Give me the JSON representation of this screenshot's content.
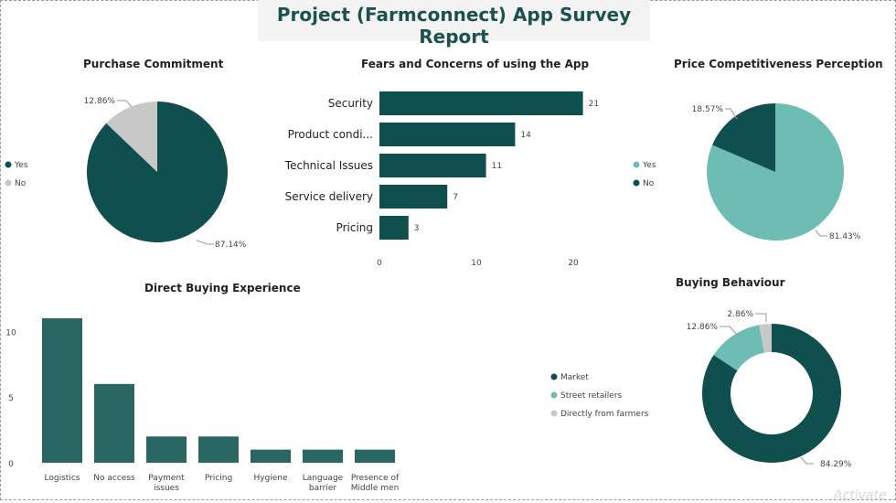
{
  "report": {
    "title": "Project (Farmconnect) App Survey Report"
  },
  "colors": {
    "dark": "#0f4f4d",
    "light": "#6dbdb4",
    "grey": "#c8c8c8",
    "bar": "#2a6763",
    "text": "#222222",
    "label": "#444444"
  },
  "chart_data": [
    {
      "type": "pie",
      "title": "Purchase Commitment",
      "legend_position": "left",
      "slices": [
        {
          "name": "Yes",
          "value": 87.14,
          "label": "87.14%",
          "color": "#0f4f4d"
        },
        {
          "name": "No",
          "value": 12.86,
          "label": "12.86%",
          "color": "#c8c8c8"
        }
      ]
    },
    {
      "type": "bar",
      "orientation": "horizontal",
      "title": "Fears and Concerns of using the App",
      "categories": [
        "Security",
        "Product condi...",
        "Technical Issues",
        "Service delivery",
        "Pricing"
      ],
      "values": [
        21,
        14,
        11,
        7,
        3
      ],
      "data_labels": [
        "21",
        "14",
        "11",
        "7",
        "3"
      ],
      "xlim": [
        0,
        22
      ],
      "xticks": [
        0,
        10,
        20
      ],
      "xtick_labels": [
        "0",
        "10",
        "20"
      ],
      "color": "#0f4f4d"
    },
    {
      "type": "pie",
      "title": "Price Competitiveness Perception",
      "legend_position": "left",
      "slices": [
        {
          "name": "Yes",
          "value": 81.43,
          "label": "81.43%",
          "color": "#6dbdb4"
        },
        {
          "name": "No",
          "value": 18.57,
          "label": "18.57%",
          "color": "#0f4f4d"
        }
      ]
    },
    {
      "type": "bar",
      "title": "Direct Buying Experience",
      "categories": [
        [
          "Logistics"
        ],
        [
          "No access"
        ],
        [
          "Payment",
          "issues"
        ],
        [
          "Pricing"
        ],
        [
          "Hygiene"
        ],
        [
          "Language",
          "barrier"
        ],
        [
          "Presence of",
          "Middle men"
        ]
      ],
      "values": [
        11,
        6,
        2,
        2,
        1,
        1,
        1
      ],
      "ylim": [
        0,
        12
      ],
      "yticks": [
        0,
        5,
        10
      ],
      "ytick_labels": [
        "0",
        "5",
        "10"
      ],
      "color": "#2a6763"
    },
    {
      "type": "pie",
      "subtype": "donut",
      "title": "Buying Behaviour",
      "legend_position": "left",
      "slices": [
        {
          "name": "Market",
          "value": 84.29,
          "label": "84.29%",
          "color": "#0f4f4d"
        },
        {
          "name": "Street retailers",
          "value": 12.86,
          "label": "12.86%",
          "color": "#6dbdb4"
        },
        {
          "name": "Directly from farmers",
          "value": 2.86,
          "label": "2.86%",
          "color": "#c8c8c8"
        }
      ]
    }
  ],
  "watermark": "Activate"
}
